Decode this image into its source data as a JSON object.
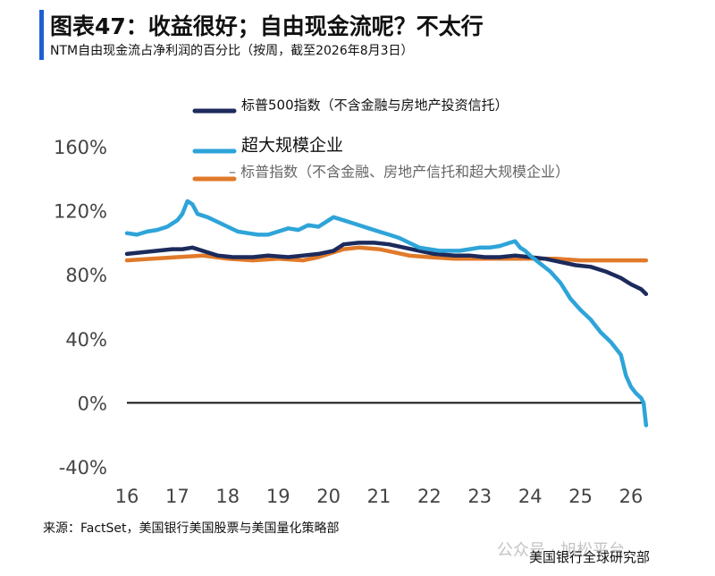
{
  "header": {
    "title": "图表47：收益很好；自由现金流呢？不太行",
    "subtitle": "NTM自由现金流占净利润的百分比（按周，截至2026年8月3日）"
  },
  "footer": {
    "source": "来源：FactSet，美国银行美国股票与美国量化策略部",
    "credit": "美国银行全球研究部",
    "watermark": "公众号 · 旭松平台"
  },
  "colors": {
    "accent": "#1f5fd6",
    "sp500_ex_fin_re": "#1c2a5c",
    "hyperscalers": "#2ea4d9",
    "sp_ex_fin_re_trusts_hyperscalers": "#e07a2a"
  },
  "chart_data": {
    "type": "line",
    "title": "",
    "xlabel": "",
    "ylabel": "",
    "xlim": [
      16,
      26.5
    ],
    "ylim": [
      -40,
      160
    ],
    "x_ticks": [
      "16",
      "17",
      "18",
      "19",
      "20",
      "21",
      "22",
      "23",
      "24",
      "25",
      "26"
    ],
    "y_ticks": [
      "160%",
      "120%",
      "80%",
      "40%",
      "0%",
      "-40%"
    ],
    "legend_position": "top-center",
    "grid": false,
    "series": [
      {
        "name": "标普500指数（不含金融与房地产投资信托）",
        "legend_label": "标普500指数（不含金融与房地产投资信托）",
        "color": "#1c2a5c",
        "points": [
          [
            16.0,
            93
          ],
          [
            16.3,
            94
          ],
          [
            16.6,
            95
          ],
          [
            16.9,
            96
          ],
          [
            17.1,
            96
          ],
          [
            17.3,
            97
          ],
          [
            17.5,
            95
          ],
          [
            17.8,
            92
          ],
          [
            18.1,
            91
          ],
          [
            18.5,
            91
          ],
          [
            18.8,
            92
          ],
          [
            19.2,
            91
          ],
          [
            19.5,
            92
          ],
          [
            19.8,
            93
          ],
          [
            20.1,
            95
          ],
          [
            20.3,
            99
          ],
          [
            20.6,
            100
          ],
          [
            20.9,
            100
          ],
          [
            21.2,
            99
          ],
          [
            21.5,
            97
          ],
          [
            21.8,
            95
          ],
          [
            22.1,
            93
          ],
          [
            22.5,
            92
          ],
          [
            22.8,
            92
          ],
          [
            23.1,
            91
          ],
          [
            23.4,
            91
          ],
          [
            23.7,
            92
          ],
          [
            24.0,
            91
          ],
          [
            24.3,
            90
          ],
          [
            24.6,
            88
          ],
          [
            24.9,
            86
          ],
          [
            25.2,
            85
          ],
          [
            25.5,
            82
          ],
          [
            25.8,
            78
          ],
          [
            26.0,
            74
          ],
          [
            26.2,
            71
          ],
          [
            26.3,
            68
          ]
        ]
      },
      {
        "name": "超大规模企业",
        "legend_label": "超大规模企业",
        "color": "#2ea4d9",
        "points": [
          [
            16.0,
            106
          ],
          [
            16.2,
            105
          ],
          [
            16.4,
            107
          ],
          [
            16.6,
            108
          ],
          [
            16.8,
            110
          ],
          [
            17.0,
            114
          ],
          [
            17.1,
            118
          ],
          [
            17.2,
            126
          ],
          [
            17.3,
            124
          ],
          [
            17.4,
            118
          ],
          [
            17.6,
            116
          ],
          [
            17.8,
            113
          ],
          [
            18.0,
            110
          ],
          [
            18.2,
            107
          ],
          [
            18.4,
            106
          ],
          [
            18.6,
            105
          ],
          [
            18.8,
            105
          ],
          [
            19.0,
            107
          ],
          [
            19.2,
            109
          ],
          [
            19.4,
            108
          ],
          [
            19.6,
            111
          ],
          [
            19.8,
            110
          ],
          [
            20.0,
            114
          ],
          [
            20.1,
            116
          ],
          [
            20.3,
            114
          ],
          [
            20.5,
            112
          ],
          [
            20.8,
            109
          ],
          [
            21.0,
            107
          ],
          [
            21.2,
            105
          ],
          [
            21.4,
            103
          ],
          [
            21.6,
            100
          ],
          [
            21.8,
            97
          ],
          [
            22.0,
            96
          ],
          [
            22.2,
            95
          ],
          [
            22.4,
            95
          ],
          [
            22.6,
            95
          ],
          [
            22.8,
            96
          ],
          [
            23.0,
            97
          ],
          [
            23.2,
            97
          ],
          [
            23.4,
            98
          ],
          [
            23.6,
            100
          ],
          [
            23.7,
            101
          ],
          [
            23.8,
            97
          ],
          [
            23.9,
            95
          ],
          [
            24.0,
            92
          ],
          [
            24.2,
            87
          ],
          [
            24.4,
            82
          ],
          [
            24.6,
            75
          ],
          [
            24.8,
            65
          ],
          [
            25.0,
            58
          ],
          [
            25.2,
            52
          ],
          [
            25.4,
            44
          ],
          [
            25.6,
            38
          ],
          [
            25.8,
            30
          ],
          [
            25.9,
            17
          ],
          [
            26.0,
            10
          ],
          [
            26.1,
            6
          ],
          [
            26.2,
            3
          ],
          [
            26.25,
            0
          ],
          [
            26.3,
            -14
          ]
        ]
      },
      {
        "name": "标普指数（不含金融、房地产信托和超大规模企业）",
        "legend_label": "– 标普指数（不含金融、房地产信托和超大规模企业）",
        "color": "#e07a2a",
        "points": [
          [
            16.0,
            89
          ],
          [
            16.5,
            90
          ],
          [
            17.0,
            91
          ],
          [
            17.5,
            92
          ],
          [
            18.0,
            90
          ],
          [
            18.5,
            89
          ],
          [
            19.0,
            90
          ],
          [
            19.5,
            89
          ],
          [
            19.8,
            91
          ],
          [
            20.0,
            93
          ],
          [
            20.3,
            96
          ],
          [
            20.6,
            97
          ],
          [
            21.0,
            96
          ],
          [
            21.3,
            94
          ],
          [
            21.6,
            92
          ],
          [
            22.0,
            91
          ],
          [
            22.5,
            90
          ],
          [
            23.0,
            90
          ],
          [
            23.5,
            90
          ],
          [
            24.0,
            90
          ],
          [
            24.5,
            90
          ],
          [
            25.0,
            89
          ],
          [
            25.5,
            89
          ],
          [
            26.0,
            89
          ],
          [
            26.3,
            89
          ]
        ]
      }
    ]
  }
}
